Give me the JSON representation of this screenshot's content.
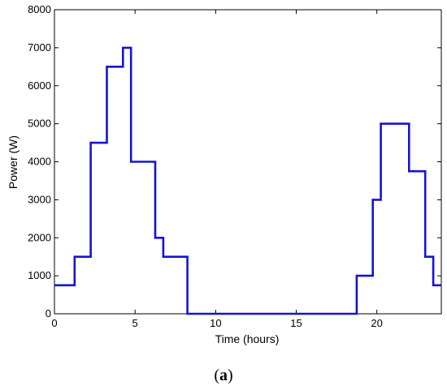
{
  "chart_data": {
    "type": "line",
    "title": "",
    "xlabel": "Time (hours)",
    "ylabel": "Power (W)",
    "xlim": [
      0,
      24
    ],
    "ylim": [
      0,
      8000
    ],
    "xticks": [
      0,
      5,
      10,
      15,
      20
    ],
    "yticks": [
      0,
      1000,
      2000,
      3000,
      4000,
      5000,
      6000,
      7000,
      8000
    ],
    "grid": false,
    "line_color": "#1414d2",
    "series": [
      {
        "x": [
          0,
          1.25,
          1.25,
          2.25,
          2.25,
          3.25,
          3.25,
          4.25,
          4.25,
          4.75,
          4.75,
          6.25,
          6.25,
          6.75,
          6.75,
          8.25,
          8.25,
          18.75,
          18.75,
          19.75,
          19.75,
          20.25,
          20.25,
          22.0,
          22.0,
          23.0,
          23.0,
          23.5,
          23.5,
          24
        ],
        "y": [
          750,
          750,
          1500,
          1500,
          4500,
          4500,
          6500,
          6500,
          7000,
          7000,
          4000,
          4000,
          2000,
          2000,
          1500,
          1500,
          0,
          0,
          1000,
          1000,
          3000,
          3000,
          5000,
          5000,
          3750,
          3750,
          1500,
          1500,
          750,
          750
        ]
      }
    ]
  },
  "caption": {
    "open": "(",
    "letter": "a",
    "close": ")"
  }
}
